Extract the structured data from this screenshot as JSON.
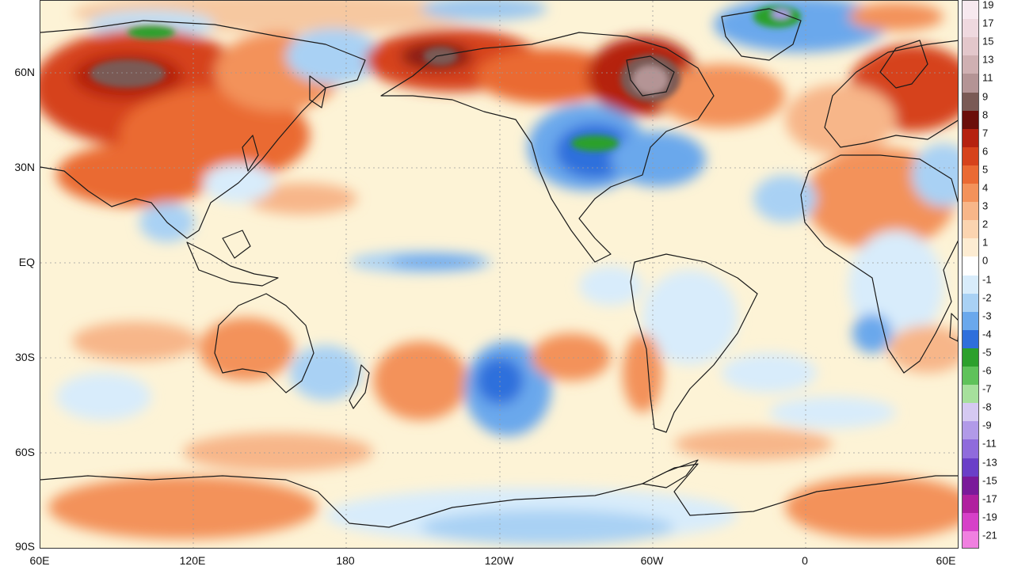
{
  "map": {
    "latitude_labels": [
      "60N",
      "30N",
      "EQ",
      "30S",
      "60S",
      "90S"
    ],
    "longitude_labels": [
      "60E",
      "120E",
      "180",
      "120W",
      "60W",
      "0",
      "60E"
    ]
  },
  "legend": {
    "values": [
      "19",
      "17",
      "15",
      "13",
      "11",
      "9",
      "8",
      "7",
      "6",
      "5",
      "4",
      "3",
      "2",
      "1",
      "0",
      "-1",
      "-2",
      "-3",
      "-4",
      "-5",
      "-6",
      "-7",
      "-8",
      "-9",
      "-11",
      "-13",
      "-15",
      "-17",
      "-19",
      "-21"
    ],
    "colors": [
      "#f7e9ef",
      "#efd9df",
      "#e3c7cb",
      "#cfb0b2",
      "#b49495",
      "#7a5a55",
      "#6b0f0a",
      "#b52210",
      "#d6431c",
      "#ea6a33",
      "#f3925a",
      "#f7b689",
      "#fbd4b0",
      "#fdecd2",
      "#ffffff",
      "#d8ecfb",
      "#a9d1f4",
      "#6aa8ec",
      "#2f6fdc",
      "#2ca02c",
      "#5fc25a",
      "#a6e09c",
      "#d5c9f2",
      "#b19ae8",
      "#8f6bdc",
      "#6a3fc8",
      "#7a1a9a",
      "#b0209f",
      "#d640c8",
      "#f080e0"
    ]
  }
}
